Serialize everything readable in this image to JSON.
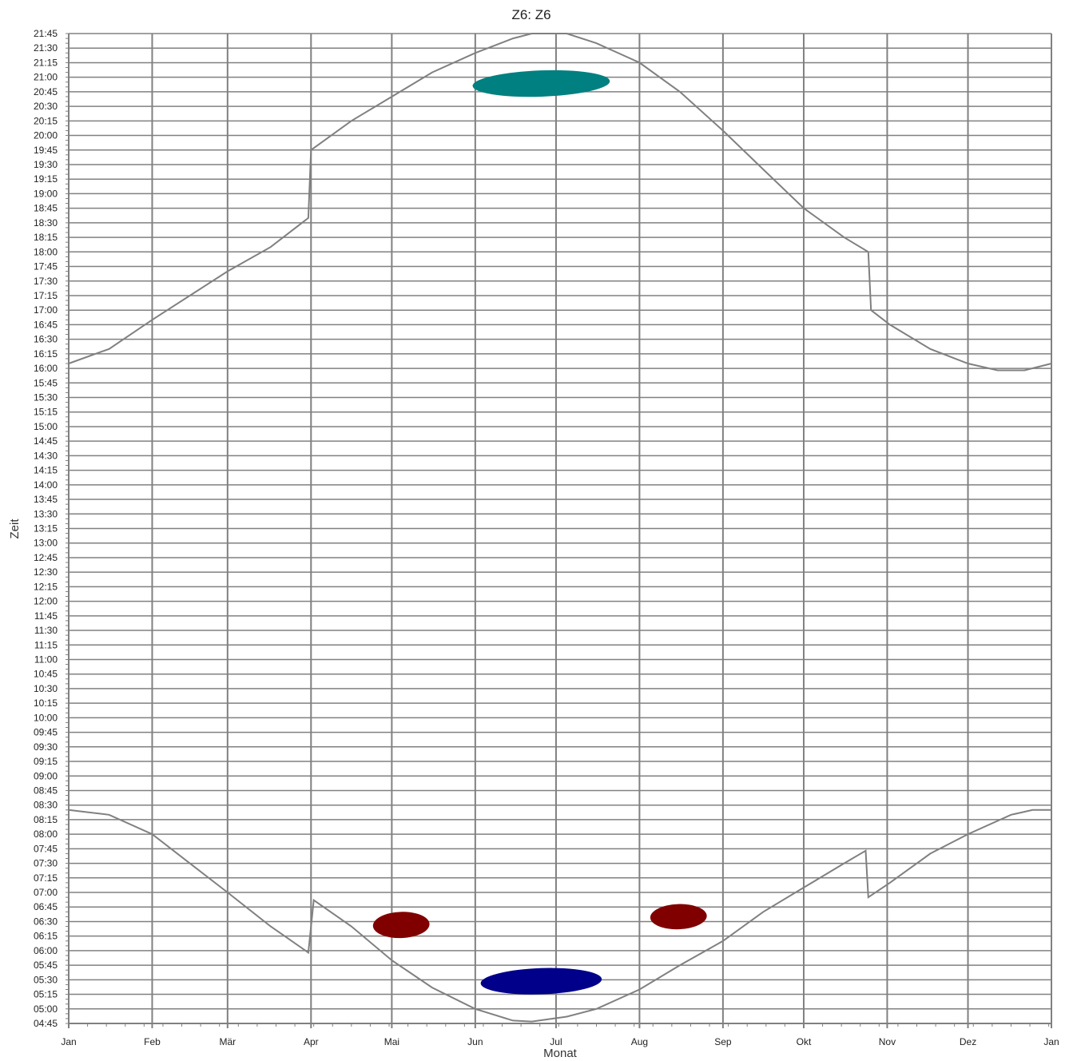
{
  "chart_data": {
    "type": "scatter",
    "title": "Z6: Z6",
    "xlabel": "Monat",
    "ylabel": "Zeit",
    "x_ticks": [
      "Jan",
      "Feb",
      "Mär",
      "Apr",
      "Mai",
      "Jun",
      "Jul",
      "Aug",
      "Sep",
      "Okt",
      "Nov",
      "Dez",
      "Jan"
    ],
    "xlim_days": [
      0,
      365
    ],
    "ylim": [
      "04:45",
      "21:45"
    ],
    "y_tick_interval_minutes": 15,
    "grid": true,
    "sunset_curve": [
      [
        0,
        "16:05"
      ],
      [
        15,
        "16:20"
      ],
      [
        31,
        "16:50"
      ],
      [
        45,
        "17:15"
      ],
      [
        59,
        "17:40"
      ],
      [
        75,
        "18:05"
      ],
      [
        89,
        "18:35"
      ],
      [
        90,
        "19:45"
      ],
      [
        105,
        "20:15"
      ],
      [
        120,
        "20:40"
      ],
      [
        135,
        "21:05"
      ],
      [
        151,
        "21:25"
      ],
      [
        165,
        "21:40"
      ],
      [
        172,
        "21:45"
      ],
      [
        185,
        "21:45"
      ],
      [
        196,
        "21:35"
      ],
      [
        212,
        "21:15"
      ],
      [
        227,
        "20:45"
      ],
      [
        243,
        "20:05"
      ],
      [
        258,
        "19:25"
      ],
      [
        273,
        "18:45"
      ],
      [
        288,
        "18:15"
      ],
      [
        297,
        "18:00"
      ],
      [
        298,
        "17:00"
      ],
      [
        305,
        "16:45"
      ],
      [
        320,
        "16:20"
      ],
      [
        334,
        "16:05"
      ],
      [
        345,
        "15:58"
      ],
      [
        355,
        "15:58"
      ],
      [
        365,
        "16:05"
      ]
    ],
    "sunrise_curve": [
      [
        0,
        "08:25"
      ],
      [
        15,
        "08:20"
      ],
      [
        31,
        "08:00"
      ],
      [
        45,
        "07:30"
      ],
      [
        59,
        "07:00"
      ],
      [
        75,
        "06:25"
      ],
      [
        89,
        "05:58"
      ],
      [
        91,
        "06:52"
      ],
      [
        105,
        "06:25"
      ],
      [
        120,
        "05:50"
      ],
      [
        135,
        "05:22"
      ],
      [
        151,
        "05:00"
      ],
      [
        165,
        "04:48"
      ],
      [
        172,
        "04:47"
      ],
      [
        185,
        "04:52"
      ],
      [
        196,
        "05:00"
      ],
      [
        212,
        "05:20"
      ],
      [
        227,
        "05:45"
      ],
      [
        243,
        "06:10"
      ],
      [
        258,
        "06:40"
      ],
      [
        273,
        "07:05"
      ],
      [
        288,
        "07:30"
      ],
      [
        296,
        "07:43"
      ],
      [
        297,
        "06:55"
      ],
      [
        305,
        "07:10"
      ],
      [
        320,
        "07:40"
      ],
      [
        334,
        "08:00"
      ],
      [
        350,
        "08:20"
      ],
      [
        358,
        "08:25"
      ],
      [
        365,
        "08:25"
      ]
    ],
    "clusters": [
      {
        "color": "#008080",
        "x_start": 150,
        "x_end": 201,
        "y_min": "20:40",
        "y_max": "21:07"
      },
      {
        "color": "#00008b",
        "x_start": 153,
        "x_end": 198,
        "y_min": "05:15",
        "y_max": "05:42"
      },
      {
        "color": "#800000",
        "x_start": 113,
        "x_end": 134,
        "y_min": "06:13",
        "y_max": "06:40"
      },
      {
        "color": "#800000",
        "x_start": 216,
        "x_end": 237,
        "y_min": "06:22",
        "y_max": "06:48"
      }
    ],
    "colors": {
      "grid": "#808080",
      "curve": "#808080",
      "axis": "#808080"
    }
  }
}
